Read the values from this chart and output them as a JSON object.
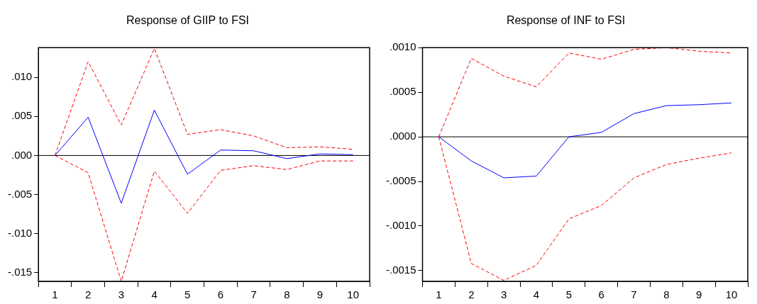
{
  "chart_data": [
    {
      "type": "line",
      "title": "Response of GIIP to FSI",
      "categories": [
        "1",
        "2",
        "3",
        "4",
        "5",
        "6",
        "7",
        "8",
        "9",
        "10"
      ],
      "ylim": [
        -0.0161,
        0.0138
      ],
      "yticks": [
        {
          "value": -0.015,
          "label": "-.015"
        },
        {
          "value": -0.01,
          "label": "-.010"
        },
        {
          "value": -0.005,
          "label": "-.005"
        },
        {
          "value": 0,
          "label": ".000"
        },
        {
          "value": 0.005,
          "label": ".005"
        },
        {
          "value": 0.01,
          "label": ".010"
        }
      ],
      "grid": false,
      "legend": false,
      "marker": "none",
      "ref_lines": [
        {
          "axis": "y",
          "value": 0,
          "color": "#000000"
        }
      ],
      "series": [
        {
          "color": "#0000ff",
          "line_style": "solid",
          "values": [
            0,
            0.0049,
            -0.0061,
            0.0058,
            -0.0024,
            0.0007,
            0.0006,
            -0.0004,
            0.0002,
            0.0001
          ]
        },
        {
          "color": "#ff0000",
          "line_style": "dashed",
          "values": [
            0,
            0.012,
            0.0039,
            0.0137,
            0.0027,
            0.0033,
            0.0025,
            0.001,
            0.0011,
            0.0008
          ]
        },
        {
          "color": "#ff0000",
          "line_style": "dashed",
          "values": [
            0,
            -0.0022,
            -0.0161,
            -0.002,
            -0.0074,
            -0.0019,
            -0.0013,
            -0.0018,
            -0.0007,
            -0.0007
          ]
        }
      ]
    },
    {
      "type": "line",
      "title": "Response of INF to FSI",
      "categories": [
        "1",
        "2",
        "3",
        "4",
        "5",
        "6",
        "7",
        "8",
        "9",
        "10"
      ],
      "ylim": [
        -0.00162,
        0.001
      ],
      "yticks": [
        {
          "value": -0.0015,
          "label": "-.0015"
        },
        {
          "value": -0.001,
          "label": "-.0010"
        },
        {
          "value": -0.0005,
          "label": "-.0005"
        },
        {
          "value": 0,
          "label": ".0000"
        },
        {
          "value": 0.0005,
          "label": ".0005"
        },
        {
          "value": 0.001,
          "label": ".0010"
        }
      ],
      "grid": false,
      "legend": false,
      "marker": "none",
      "ref_lines": [
        {
          "axis": "y",
          "value": 0,
          "color": "#000000"
        }
      ],
      "series": [
        {
          "color": "#0000ff",
          "line_style": "solid",
          "values": [
            0,
            -0.00027,
            -0.00046,
            -0.00044,
            0,
            5e-05,
            0.00026,
            0.00035,
            0.00036,
            0.00038
          ]
        },
        {
          "color": "#ff0000",
          "line_style": "dashed",
          "values": [
            0,
            0.00088,
            0.00068,
            0.00056,
            0.00094,
            0.00087,
            0.00098,
            0.001,
            0.00096,
            0.00094
          ]
        },
        {
          "color": "#ff0000",
          "line_style": "dashed",
          "values": [
            0,
            -0.00142,
            -0.00161,
            -0.00144,
            -0.00092,
            -0.00077,
            -0.00046,
            -0.00031,
            -0.00024,
            -0.00018
          ]
        }
      ]
    }
  ]
}
